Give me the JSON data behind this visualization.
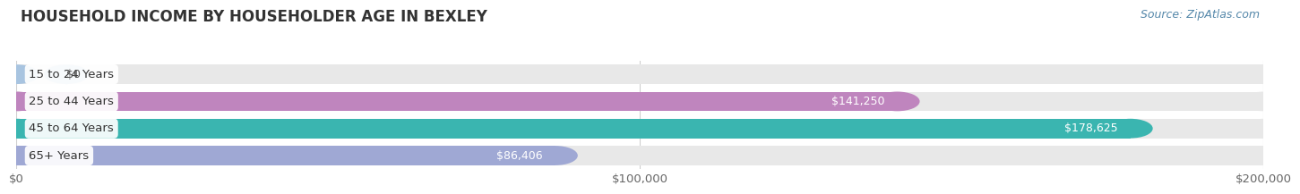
{
  "title": "HOUSEHOLD INCOME BY HOUSEHOLDER AGE IN BEXLEY",
  "source": "Source: ZipAtlas.com",
  "categories": [
    "15 to 24 Years",
    "25 to 44 Years",
    "45 to 64 Years",
    "65+ Years"
  ],
  "values": [
    0,
    141250,
    178625,
    86406
  ],
  "bar_colors": [
    "#a8c4e0",
    "#bf85be",
    "#3ab5b0",
    "#9fa8d4"
  ],
  "value_labels": [
    "$0",
    "$141,250",
    "$178,625",
    "$86,406"
  ],
  "xlim": [
    0,
    200000
  ],
  "xticks": [
    0,
    100000,
    200000
  ],
  "xtick_labels": [
    "$0",
    "$100,000",
    "$200,000"
  ],
  "title_fontsize": 12,
  "bar_label_fontsize": 9.5,
  "value_label_fontsize": 9,
  "source_fontsize": 9,
  "background_color": "#ffffff",
  "bar_bg_color": "#e8e8e8",
  "grid_color": "#d0d0d0"
}
